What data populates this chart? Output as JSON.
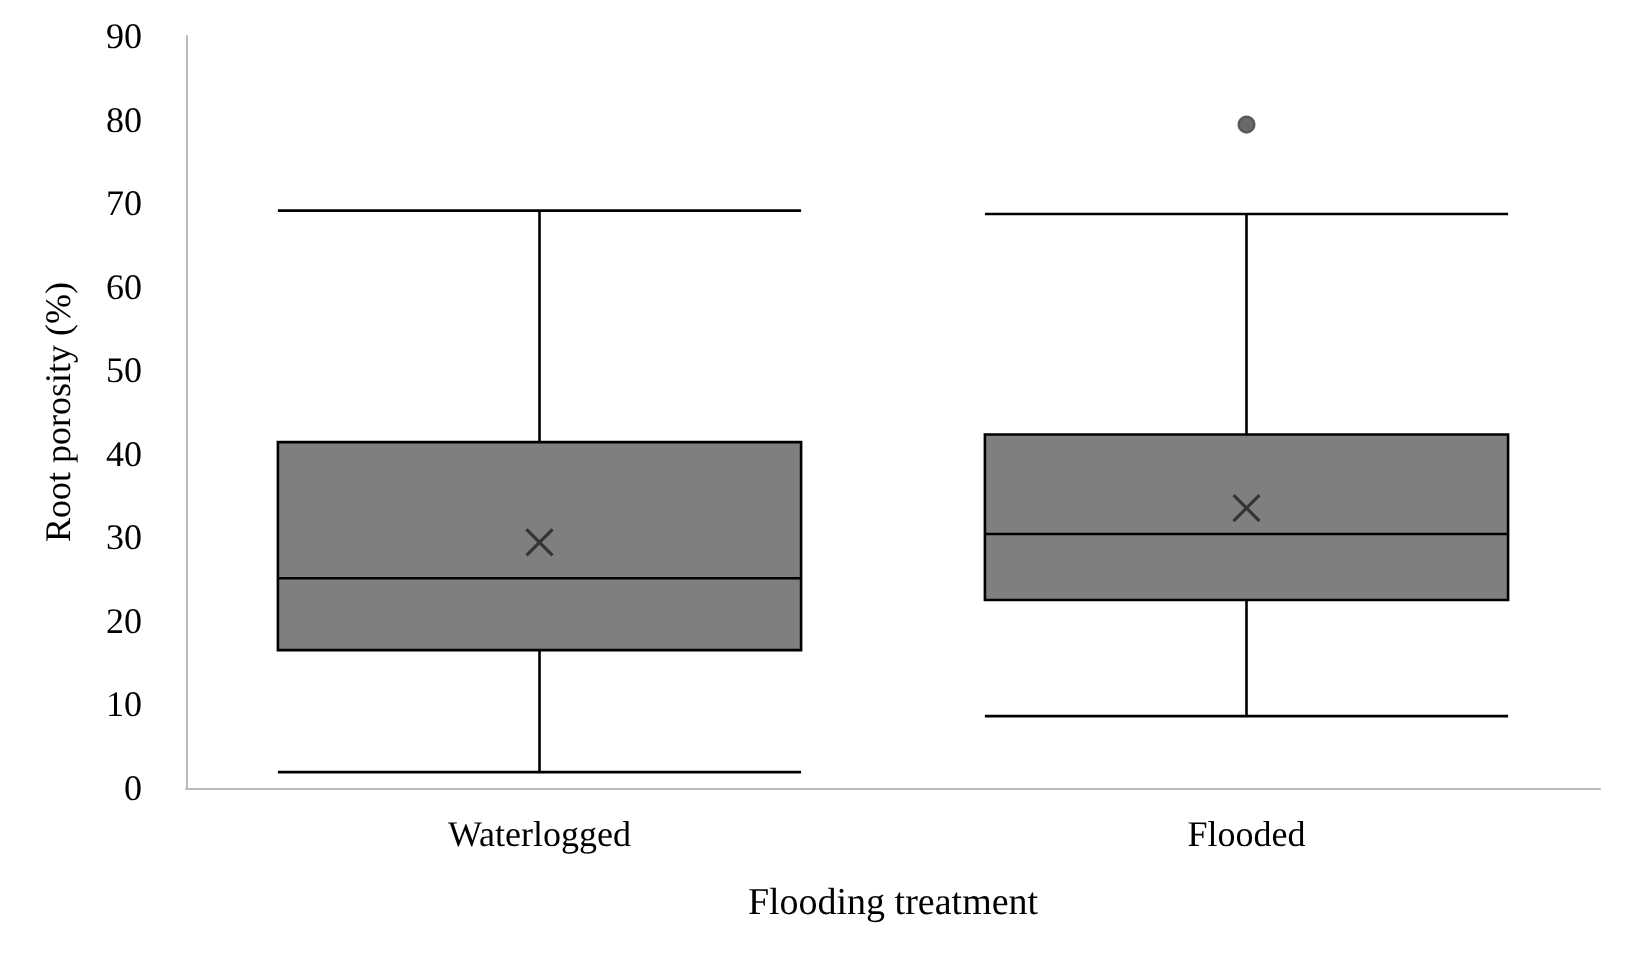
{
  "chart_data": {
    "type": "box",
    "xlabel": "Flooding treatment",
    "ylabel": "Root porosity (%)",
    "categories": [
      "Waterlogged",
      "Flooded"
    ],
    "color": "#7f7f7f",
    "boxes": [
      {
        "low": 1.9,
        "q1": 16.5,
        "median": 25.1,
        "q3": 41.4,
        "high": 69.1,
        "mean": 29.4
      },
      {
        "low": 8.6,
        "q1": 22.5,
        "median": 30.4,
        "q3": 42.3,
        "high": 68.7,
        "mean": 33.5,
        "outliers": [
          79.4
        ]
      }
    ],
    "ylim": [
      0,
      90
    ],
    "yticks": [
      0,
      10,
      20,
      30,
      40,
      50,
      60,
      70,
      80,
      90
    ],
    "grid": false
  }
}
